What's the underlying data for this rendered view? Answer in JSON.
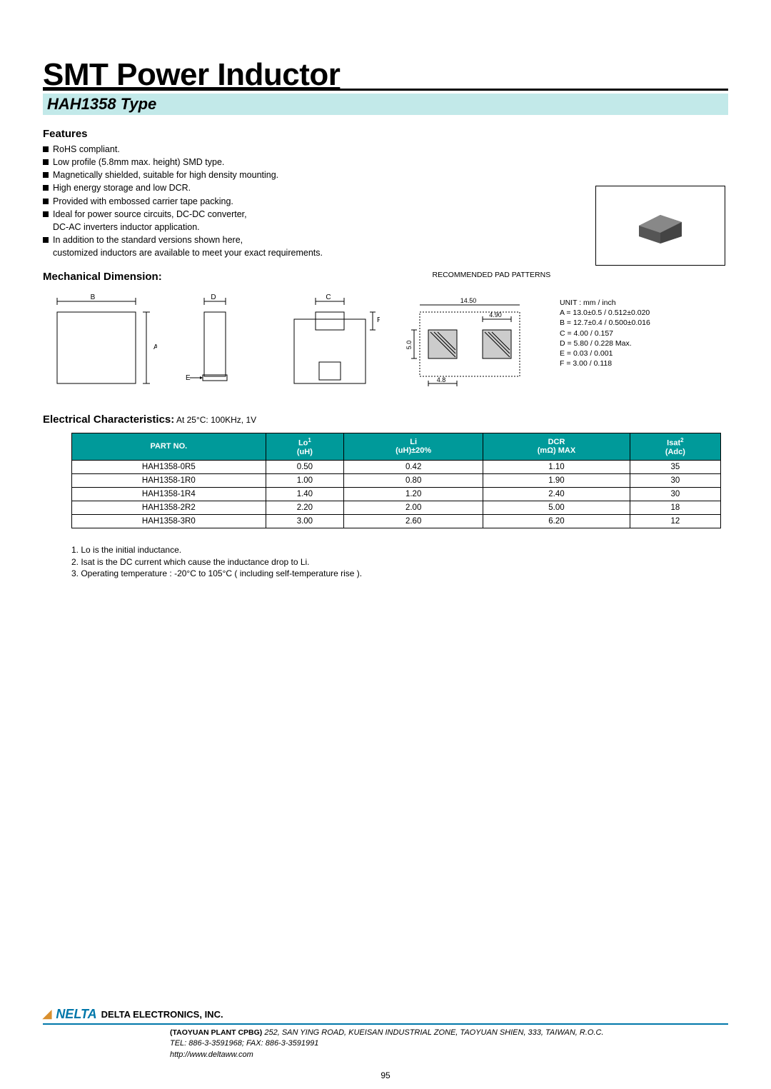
{
  "title": "SMT Power Inductor",
  "type": "HAH1358 Type",
  "features_heading": "Features",
  "features": [
    "RoHS   compliant.",
    "Low   profile  (5.8mm   max.  height)  SMD   type.",
    "Magnetically   shielded,  suitable   for   high   density   mounting.",
    "High   energy   storage   and   low   DCR.",
    "Provided   with   embossed   carrier   tape   packing.",
    "Ideal   for   power   source  circuits,  DC-DC   converter,\nDC-AC   inverters   inductor   application.",
    "In   addition   to   the   standard   versions   shown   here,\ncustomized   inductors   are   available   to   meet   your   exact   requirements."
  ],
  "mech_heading": "Mechanical Dimension:",
  "rec_pad_heading": "RECOMMENDED  PAD  PATTERNS",
  "dim_unit": "UNIT : mm / inch",
  "dims": {
    "A": "A = 13.0±0.5 / 0.512±0.020",
    "B": "B = 12.7±0.4 / 0.500±0.016",
    "C": "C = 4.00 / 0.157",
    "D": "D = 5.80 / 0.228 Max.",
    "E": "E = 0.03 / 0.001",
    "F": "F = 3.00 / 0.118"
  },
  "pad": {
    "w": "14.50",
    "p": "4.90",
    "h": "5.0",
    "pw": "4.8"
  },
  "elec_heading": "Electrical Characteristics:",
  "elec_sub": " At 25°C: 100KHz, 1V",
  "columns": [
    "PART NO.",
    "Lo¹\n(uH)",
    "Li\n(uH)±20%",
    "DCR\n(mΩ) MAX",
    "Isat²\n(Adc)"
  ],
  "rows": [
    [
      "HAH1358-0R5",
      "0.50",
      "0.42",
      "1.10",
      "35"
    ],
    [
      "HAH1358-1R0",
      "1.00",
      "0.80",
      "1.90",
      "30"
    ],
    [
      "HAH1358-1R4",
      "1.40",
      "1.20",
      "2.40",
      "30"
    ],
    [
      "HAH1358-2R2",
      "2.20",
      "2.00",
      "5.00",
      "18"
    ],
    [
      "HAH1358-3R0",
      "3.00",
      "2.60",
      "6.20",
      "12"
    ]
  ],
  "notes": [
    "1.  Lo  is  the  initial  inductance.",
    "2.  Isat  is the  DC  current which  cause  the  inductance  drop  to  Li.",
    "3.  Operating temperature  :   -20°C  to  105°C  ( including  self-temperature  rise )."
  ],
  "company": "DELTA ELECTRONICS, INC.",
  "plant": "(TAOYUAN PLANT CPBG)",
  "addr1": "252, SAN YING ROAD, KUEISAN INDUSTRIAL ZONE, TAOYUAN SHIEN, 333, TAIWAN, R.O.C.",
  "addr2": "TEL: 886-3-3591968; FAX: 886-3-3591991",
  "addr3": "http://www.deltaww.com",
  "page": "95",
  "colors": {
    "header_bg": "#c2e9e9",
    "th_bg": "#009a9a",
    "logo_blue": "#0077aa",
    "logo_orange": "#d98f2e"
  }
}
